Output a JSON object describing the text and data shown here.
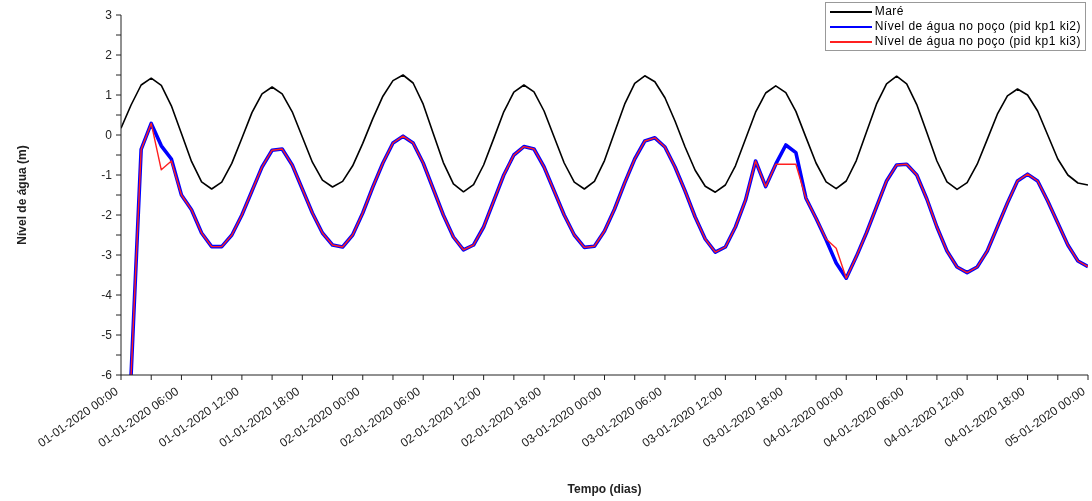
{
  "chart_data": {
    "type": "line",
    "xlabel": "Tempo (dias)",
    "ylabel": "Nível de água (m)",
    "x": [
      "2020-01-01T00:00",
      "2020-01-01T01:00",
      "2020-01-01T02:00",
      "2020-01-01T03:00",
      "2020-01-01T04:00",
      "2020-01-01T05:00",
      "2020-01-01T06:00",
      "2020-01-01T07:00",
      "2020-01-01T08:00",
      "2020-01-01T09:00",
      "2020-01-01T10:00",
      "2020-01-01T11:00",
      "2020-01-01T12:00",
      "2020-01-01T13:00",
      "2020-01-01T14:00",
      "2020-01-01T15:00",
      "2020-01-01T16:00",
      "2020-01-01T17:00",
      "2020-01-01T18:00",
      "2020-01-01T19:00",
      "2020-01-01T20:00",
      "2020-01-01T21:00",
      "2020-01-01T22:00",
      "2020-01-01T23:00",
      "2020-01-02T00:00",
      "2020-01-02T01:00",
      "2020-01-02T02:00",
      "2020-01-02T03:00",
      "2020-01-02T04:00",
      "2020-01-02T05:00",
      "2020-01-02T06:00",
      "2020-01-02T07:00",
      "2020-01-02T08:00",
      "2020-01-02T09:00",
      "2020-01-02T10:00",
      "2020-01-02T11:00",
      "2020-01-02T12:00",
      "2020-01-02T13:00",
      "2020-01-02T14:00",
      "2020-01-02T15:00",
      "2020-01-02T16:00",
      "2020-01-02T17:00",
      "2020-01-02T18:00",
      "2020-01-02T19:00",
      "2020-01-02T20:00",
      "2020-01-02T21:00",
      "2020-01-02T22:00",
      "2020-01-02T23:00",
      "2020-01-03T00:00",
      "2020-01-03T01:00",
      "2020-01-03T02:00",
      "2020-01-03T03:00",
      "2020-01-03T04:00",
      "2020-01-03T05:00",
      "2020-01-03T06:00",
      "2020-01-03T07:00",
      "2020-01-03T08:00",
      "2020-01-03T09:00",
      "2020-01-03T10:00",
      "2020-01-03T11:00",
      "2020-01-03T12:00",
      "2020-01-03T13:00",
      "2020-01-03T14:00",
      "2020-01-03T15:00",
      "2020-01-03T16:00",
      "2020-01-03T17:00",
      "2020-01-03T18:00",
      "2020-01-03T19:00",
      "2020-01-03T20:00",
      "2020-01-03T21:00",
      "2020-01-03T22:00",
      "2020-01-03T23:00",
      "2020-01-04T00:00",
      "2020-01-04T01:00",
      "2020-01-04T02:00",
      "2020-01-04T03:00",
      "2020-01-04T04:00",
      "2020-01-04T05:00",
      "2020-01-04T06:00",
      "2020-01-04T07:00",
      "2020-01-04T08:00",
      "2020-01-04T09:00",
      "2020-01-04T10:00",
      "2020-01-04T11:00",
      "2020-01-04T12:00",
      "2020-01-04T13:00",
      "2020-01-04T14:00",
      "2020-01-04T15:00",
      "2020-01-04T16:00",
      "2020-01-04T17:00",
      "2020-01-04T18:00",
      "2020-01-04T19:00",
      "2020-01-04T20:00",
      "2020-01-04T21:00",
      "2020-01-04T22:00",
      "2020-01-04T23:00",
      "2020-01-05T00:00"
    ],
    "series": [
      {
        "name": "Maré",
        "color": "#000000",
        "values": [
          0.17,
          0.75,
          1.25,
          1.42,
          1.24,
          0.73,
          0.04,
          -0.66,
          -1.17,
          -1.35,
          -1.18,
          -0.71,
          -0.08,
          0.56,
          1.03,
          1.2,
          1.03,
          0.58,
          -0.05,
          -0.68,
          -1.13,
          -1.3,
          -1.16,
          -0.77,
          -0.21,
          0.41,
          0.97,
          1.36,
          1.5,
          1.3,
          0.77,
          0.04,
          -0.69,
          -1.22,
          -1.42,
          -1.24,
          -0.75,
          -0.09,
          0.58,
          1.07,
          1.25,
          1.08,
          0.6,
          -0.05,
          -0.7,
          -1.18,
          -1.35,
          -1.16,
          -0.64,
          0.07,
          0.77,
          1.29,
          1.48,
          1.33,
          0.93,
          0.35,
          -0.3,
          -0.88,
          -1.28,
          -1.43,
          -1.25,
          -0.77,
          -0.1,
          0.57,
          1.05,
          1.23,
          1.06,
          0.59,
          -0.06,
          -0.7,
          -1.17,
          -1.34,
          -1.15,
          -0.64,
          0.07,
          0.77,
          1.28,
          1.47,
          1.28,
          0.76,
          0.06,
          -0.65,
          -1.17,
          -1.36,
          -1.19,
          -0.73,
          -0.11,
          0.52,
          0.98,
          1.15,
          1.0,
          0.6,
          0.0,
          -0.6,
          -1.0,
          -1.2,
          -1.25
        ]
      },
      {
        "name": "Nível de água no poço (pid kp1 ki2)",
        "color": "#0000ff",
        "values": [
          null,
          -6,
          -0.36,
          0.29,
          -0.27,
          -0.6,
          -1.5,
          -1.87,
          -2.45,
          -2.79,
          -2.79,
          -2.5,
          -2.0,
          -1.4,
          -0.8,
          -0.38,
          -0.35,
          -0.75,
          -1.35,
          -1.95,
          -2.45,
          -2.75,
          -2.8,
          -2.5,
          -1.95,
          -1.3,
          -0.7,
          -0.2,
          -0.03,
          -0.2,
          -0.7,
          -1.35,
          -2.0,
          -2.55,
          -2.87,
          -2.75,
          -2.3,
          -1.65,
          -1.0,
          -0.5,
          -0.29,
          -0.35,
          -0.8,
          -1.4,
          -2.0,
          -2.5,
          -2.81,
          -2.78,
          -2.4,
          -1.85,
          -1.2,
          -0.6,
          -0.15,
          -0.07,
          -0.3,
          -0.8,
          -1.4,
          -2.05,
          -2.6,
          -2.93,
          -2.8,
          -2.3,
          -1.63,
          -0.65,
          -1.29,
          -0.73,
          -0.25,
          -0.44,
          -1.58,
          -2.08,
          -2.62,
          -3.2,
          -3.58,
          -3.04,
          -2.45,
          -1.8,
          -1.15,
          -0.75,
          -0.73,
          -1.0,
          -1.6,
          -2.3,
          -2.9,
          -3.3,
          -3.44,
          -3.3,
          -2.9,
          -2.3,
          -1.7,
          -1.15,
          -0.98,
          -1.15,
          -1.65,
          -2.2,
          -2.75,
          -3.15,
          -3.29
        ]
      },
      {
        "name": "Nível de água no poço (pid kp1 ki3)",
        "color": "#ff2020",
        "values": [
          null,
          -6,
          -0.36,
          0.29,
          -0.87,
          -0.65,
          -1.5,
          -1.87,
          -2.45,
          -2.79,
          -2.79,
          -2.5,
          -2.0,
          -1.4,
          -0.8,
          -0.38,
          -0.35,
          -0.75,
          -1.35,
          -1.95,
          -2.45,
          -2.75,
          -2.8,
          -2.5,
          -1.95,
          -1.3,
          -0.7,
          -0.2,
          -0.03,
          -0.2,
          -0.7,
          -1.35,
          -2.0,
          -2.55,
          -2.87,
          -2.75,
          -2.3,
          -1.65,
          -1.0,
          -0.5,
          -0.29,
          -0.35,
          -0.8,
          -1.4,
          -2.0,
          -2.5,
          -2.81,
          -2.78,
          -2.4,
          -1.85,
          -1.2,
          -0.6,
          -0.15,
          -0.07,
          -0.3,
          -0.8,
          -1.4,
          -2.05,
          -2.6,
          -2.93,
          -2.8,
          -2.3,
          -1.63,
          -0.65,
          -1.29,
          -0.73,
          -0.73,
          -0.73,
          -1.58,
          -2.08,
          -2.6,
          -2.83,
          -3.58,
          -3.04,
          -2.45,
          -1.8,
          -1.15,
          -0.75,
          -0.73,
          -1.0,
          -1.6,
          -2.3,
          -2.9,
          -3.3,
          -3.44,
          -3.3,
          -2.9,
          -2.3,
          -1.7,
          -1.15,
          -0.98,
          -1.15,
          -1.65,
          -2.2,
          -2.75,
          -3.15,
          -3.29
        ]
      }
    ],
    "xlim": [
      "2020-01-01T00:00",
      "2020-01-05T00:00"
    ],
    "xticks": [
      {
        "value": "2020-01-01T00:00",
        "label": "01-01-2020 00:00"
      },
      {
        "value": "2020-01-01T03:00",
        "label": null
      },
      {
        "value": "2020-01-01T06:00",
        "label": "01-01-2020 06:00"
      },
      {
        "value": "2020-01-01T09:00",
        "label": null
      },
      {
        "value": "2020-01-01T12:00",
        "label": "01-01-2020 12:00"
      },
      {
        "value": "2020-01-01T15:00",
        "label": null
      },
      {
        "value": "2020-01-01T18:00",
        "label": "01-01-2020 18:00"
      },
      {
        "value": "2020-01-01T21:00",
        "label": null
      },
      {
        "value": "2020-01-02T00:00",
        "label": "02-01-2020 00:00"
      },
      {
        "value": "2020-01-02T03:00",
        "label": null
      },
      {
        "value": "2020-01-02T06:00",
        "label": "02-01-2020 06:00"
      },
      {
        "value": "2020-01-02T09:00",
        "label": null
      },
      {
        "value": "2020-01-02T12:00",
        "label": "02-01-2020 12:00"
      },
      {
        "value": "2020-01-02T15:00",
        "label": null
      },
      {
        "value": "2020-01-02T18:00",
        "label": "02-01-2020 18:00"
      },
      {
        "value": "2020-01-02T21:00",
        "label": null
      },
      {
        "value": "2020-01-03T00:00",
        "label": "03-01-2020 00:00"
      },
      {
        "value": "2020-01-03T03:00",
        "label": null
      },
      {
        "value": "2020-01-03T06:00",
        "label": "03-01-2020 06:00"
      },
      {
        "value": "2020-01-03T09:00",
        "label": null
      },
      {
        "value": "2020-01-03T12:00",
        "label": "03-01-2020 12:00"
      },
      {
        "value": "2020-01-03T15:00",
        "label": null
      },
      {
        "value": "2020-01-03T18:00",
        "label": "03-01-2020 18:00"
      },
      {
        "value": "2020-01-03T21:00",
        "label": null
      },
      {
        "value": "2020-01-04T00:00",
        "label": "04-01-2020 00:00"
      },
      {
        "value": "2020-01-04T03:00",
        "label": null
      },
      {
        "value": "2020-01-04T06:00",
        "label": "04-01-2020 06:00"
      },
      {
        "value": "2020-01-04T09:00",
        "label": null
      },
      {
        "value": "2020-01-04T12:00",
        "label": "04-01-2020 12:00"
      },
      {
        "value": "2020-01-04T15:00",
        "label": null
      },
      {
        "value": "2020-01-04T18:00",
        "label": "04-01-2020 18:00"
      },
      {
        "value": "2020-01-04T21:00",
        "label": null
      },
      {
        "value": "2020-01-05T00:00",
        "label": "05-01-2020 00:00"
      }
    ],
    "ylim": [
      -6,
      3
    ],
    "yticks": [
      -6,
      {
        "value": -5.5,
        "label": null
      },
      -5,
      {
        "value": -4.5,
        "label": null
      },
      -4,
      {
        "value": -3.5,
        "label": null
      },
      -3,
      {
        "value": -2.5,
        "label": null
      },
      -2,
      {
        "value": -1.5,
        "label": null
      },
      -1,
      {
        "value": -0.5,
        "label": null
      },
      0,
      {
        "value": 0.5,
        "label": null
      },
      1,
      {
        "value": 1.5,
        "label": null
      },
      2,
      {
        "value": 2.5,
        "label": null
      },
      3
    ],
    "grid": false,
    "legend": "top right",
    "marker": "none",
    "line_style": "solid"
  }
}
